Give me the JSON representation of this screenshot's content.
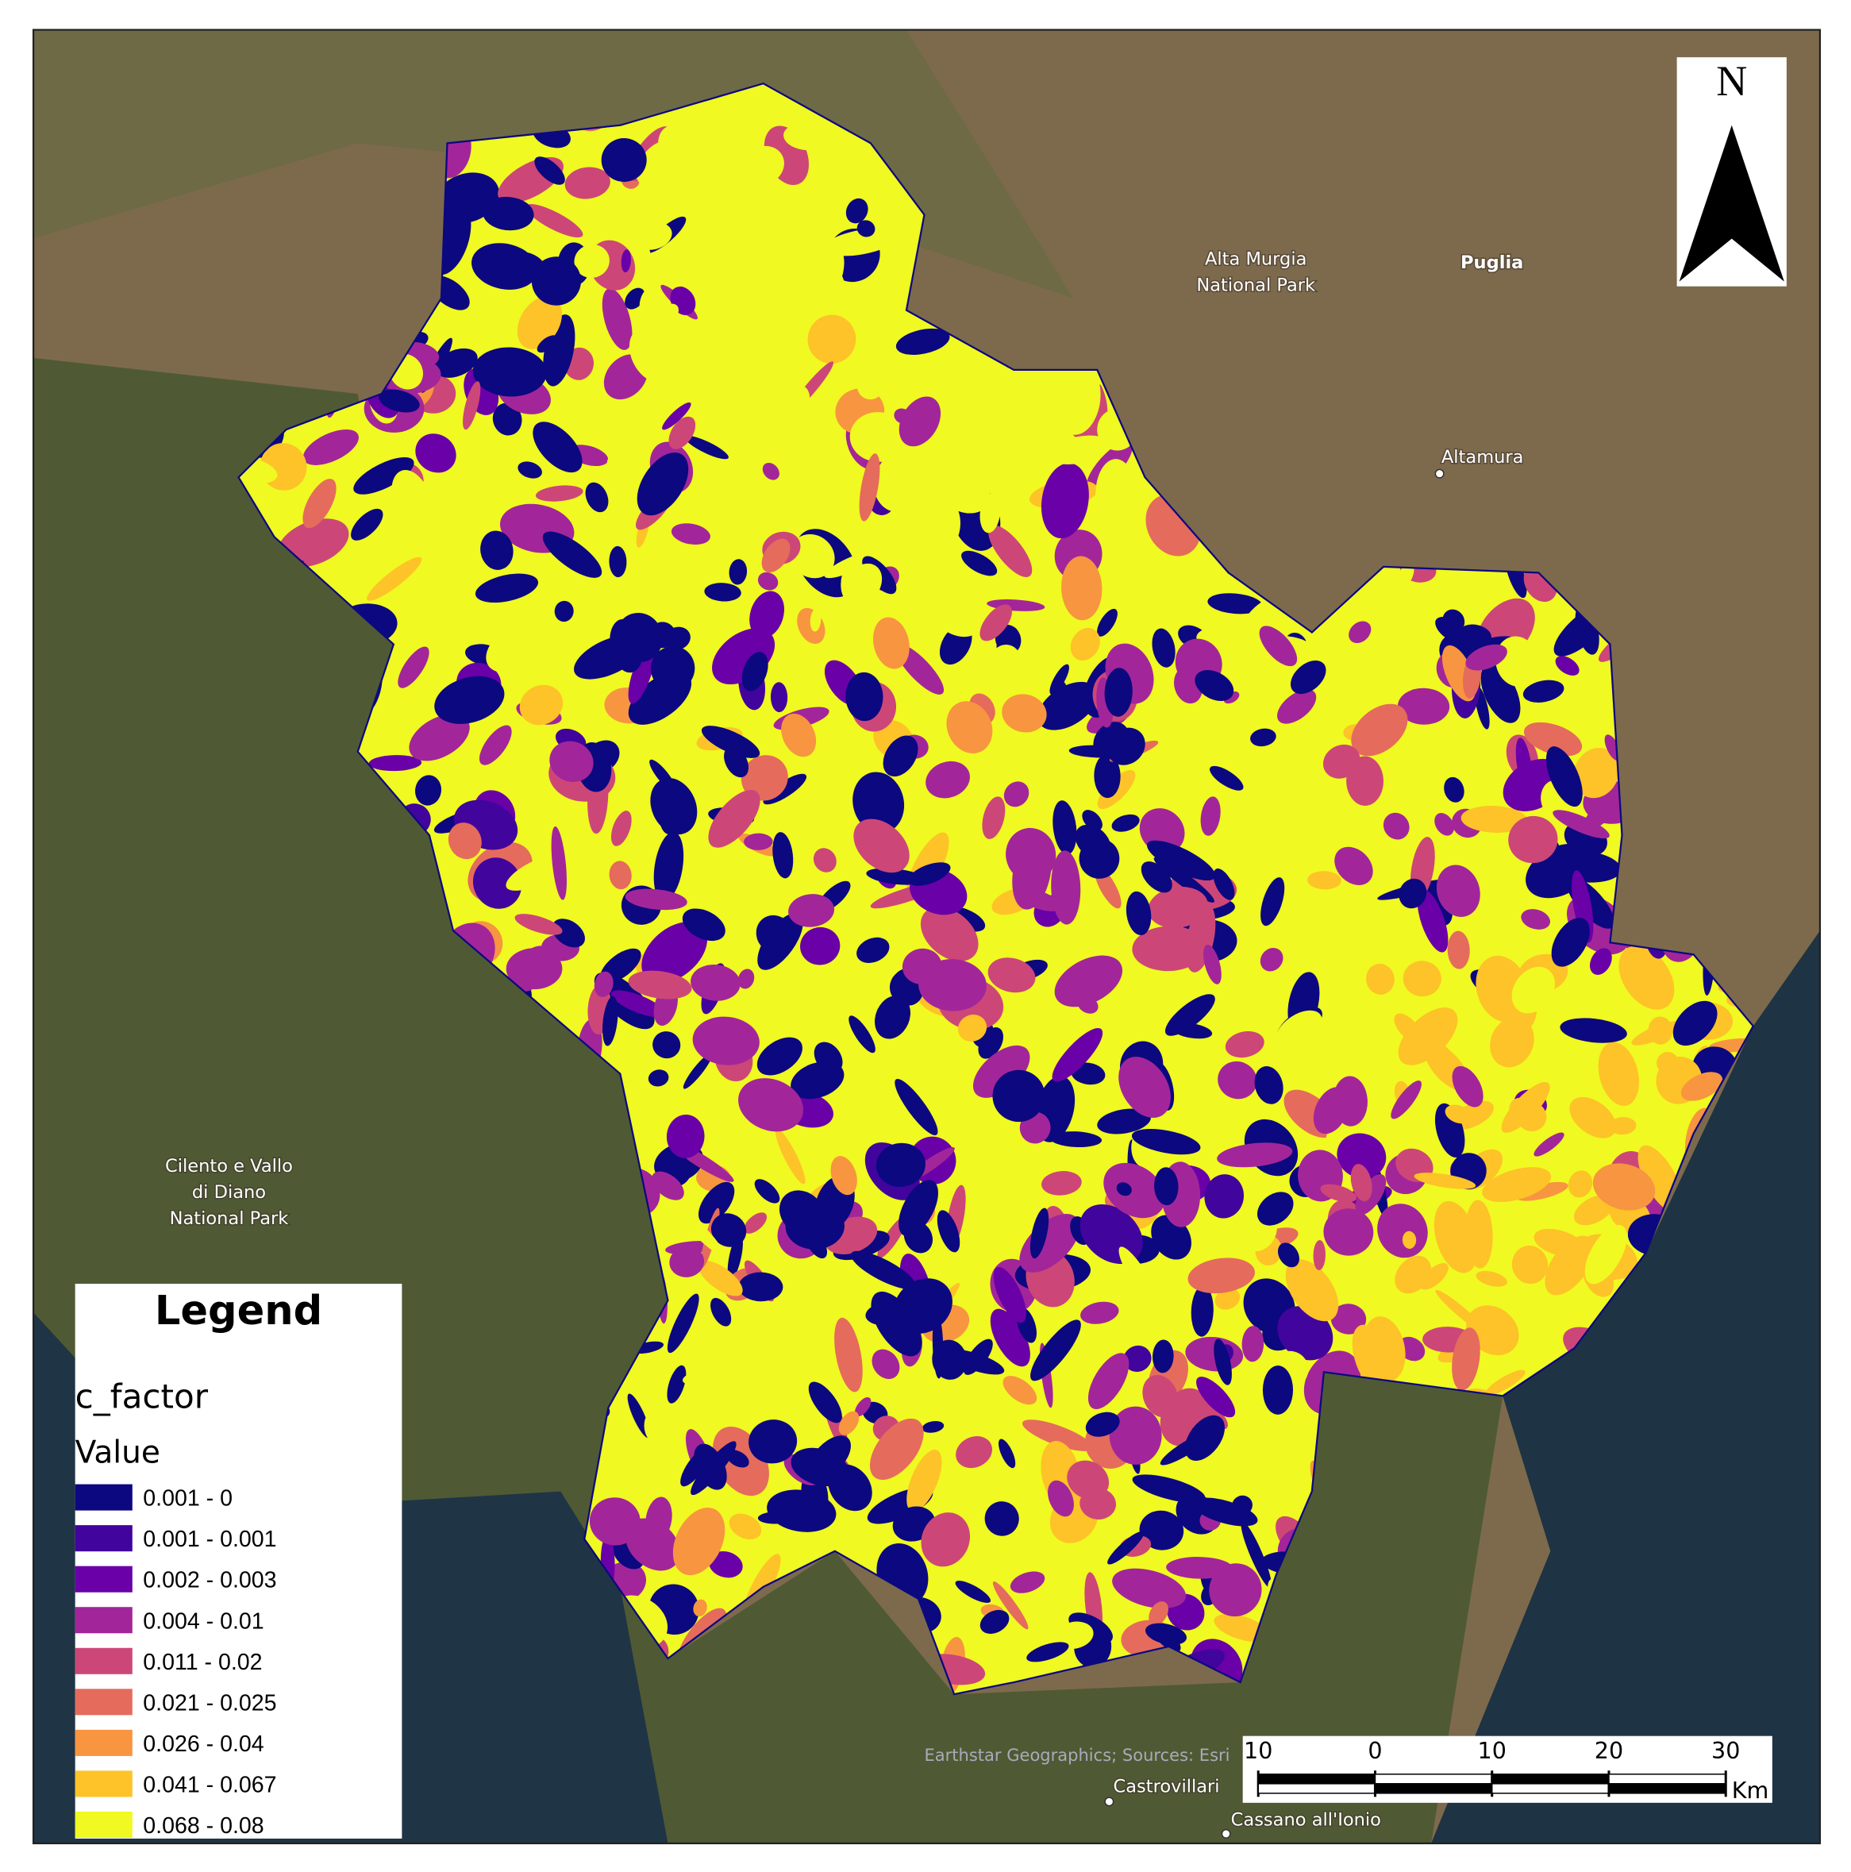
{
  "legend": {
    "title": "Legend",
    "field": "c_factor",
    "subtitle": "Value",
    "classes": [
      {
        "label": "0.001 - 0",
        "color": "#0c0880"
      },
      {
        "label": "0.001 - 0.001",
        "color": "#41049d"
      },
      {
        "label": "0.002 - 0.003",
        "color": "#6a00a8"
      },
      {
        "label": "0.004 - 0.01",
        "color": "#a2269a"
      },
      {
        "label": "0.011 - 0.02",
        "color": "#cc4778"
      },
      {
        "label": "0.021 - 0.025",
        "color": "#e56b5d"
      },
      {
        "label": "0.026 - 0.04",
        "color": "#f89540"
      },
      {
        "label": "0.041 - 0.067",
        "color": "#fdc328"
      },
      {
        "label": "0.068 - 0.08",
        "color": "#f0f921"
      }
    ]
  },
  "places": [
    {
      "lines": [
        "Alta Murgia",
        "National Park"
      ]
    },
    {
      "lines": [
        "Puglia"
      ]
    },
    {
      "lines": [
        "Altamura"
      ]
    },
    {
      "lines": [
        "Cilento e Vallo",
        "di Diano",
        "National Park"
      ]
    },
    {
      "lines": [
        "Castrovillari"
      ]
    },
    {
      "lines": [
        "Cassano all'Ionio"
      ]
    }
  ],
  "north_arrow": "N",
  "attribution": "Earthstar Geographics; Sources: Esri",
  "scale_bar": {
    "ticks": [
      {
        "value": -10,
        "label": "10"
      },
      0,
      10,
      20,
      30
    ],
    "unit": "Km"
  }
}
